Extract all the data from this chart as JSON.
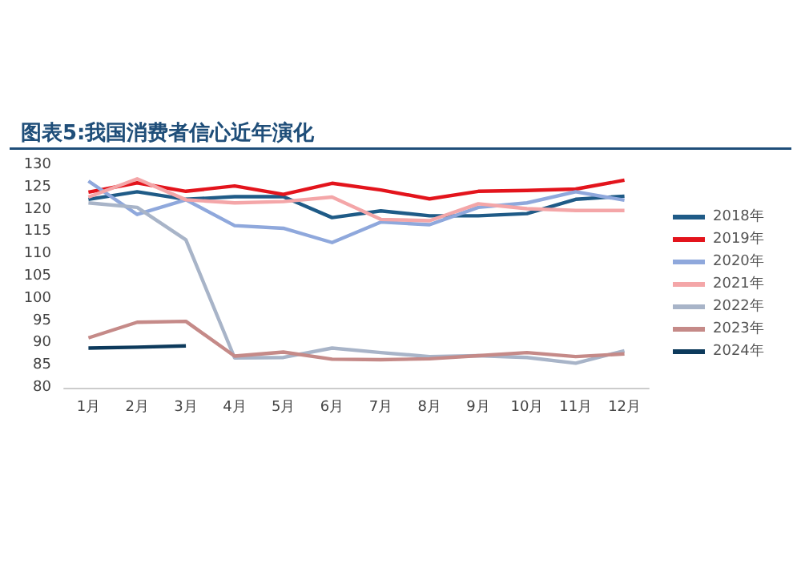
{
  "chart_data": {
    "type": "line",
    "title": "图表5:我国消费者信心近年演化",
    "categories": [
      "1月",
      "2月",
      "3月",
      "4月",
      "5月",
      "6月",
      "7月",
      "8月",
      "9月",
      "10月",
      "11月",
      "12月"
    ],
    "series": [
      {
        "name": "2018年",
        "color": "#1f5b87",
        "values": [
          122.3,
          124.0,
          122.3,
          122.9,
          122.9,
          118.2,
          119.7,
          118.6,
          118.6,
          119.1,
          122.3,
          123.0
        ]
      },
      {
        "name": "2019年",
        "color": "#e3141c",
        "values": [
          123.9,
          126.0,
          124.1,
          125.3,
          123.4,
          125.9,
          124.4,
          122.4,
          124.1,
          124.3,
          124.6,
          126.6
        ]
      },
      {
        "name": "2020年",
        "color": "#8fa8dc",
        "values": [
          126.4,
          118.9,
          122.2,
          116.4,
          115.8,
          112.6,
          117.2,
          116.6,
          120.5,
          121.5,
          124.0,
          122.1
        ]
      },
      {
        "name": "2021年",
        "color": "#f4a6a8",
        "values": [
          122.8,
          126.9,
          122.2,
          121.5,
          121.8,
          122.8,
          117.8,
          117.5,
          121.3,
          120.2,
          119.8,
          119.8
        ]
      },
      {
        "name": "2022年",
        "color": "#a8b4c8",
        "values": [
          121.5,
          120.5,
          113.2,
          86.7,
          86.8,
          88.9,
          87.9,
          87.0,
          87.2,
          86.8,
          85.5,
          88.3
        ]
      },
      {
        "name": "2023年",
        "color": "#c58a88",
        "values": [
          91.2,
          94.7,
          94.9,
          87.1,
          88.0,
          86.4,
          86.3,
          86.5,
          87.2,
          87.9,
          87.0,
          87.6
        ]
      },
      {
        "name": "2024年",
        "color": "#0d3a5c",
        "values": [
          88.9,
          89.1,
          89.4,
          null,
          null,
          null,
          null,
          null,
          null,
          null,
          null,
          null
        ]
      }
    ],
    "ylim": [
      80,
      130
    ],
    "yticks": [
      80,
      85,
      90,
      95,
      100,
      105,
      110,
      115,
      120,
      125,
      130
    ],
    "grid": false,
    "legend": "right",
    "marker": "none"
  }
}
